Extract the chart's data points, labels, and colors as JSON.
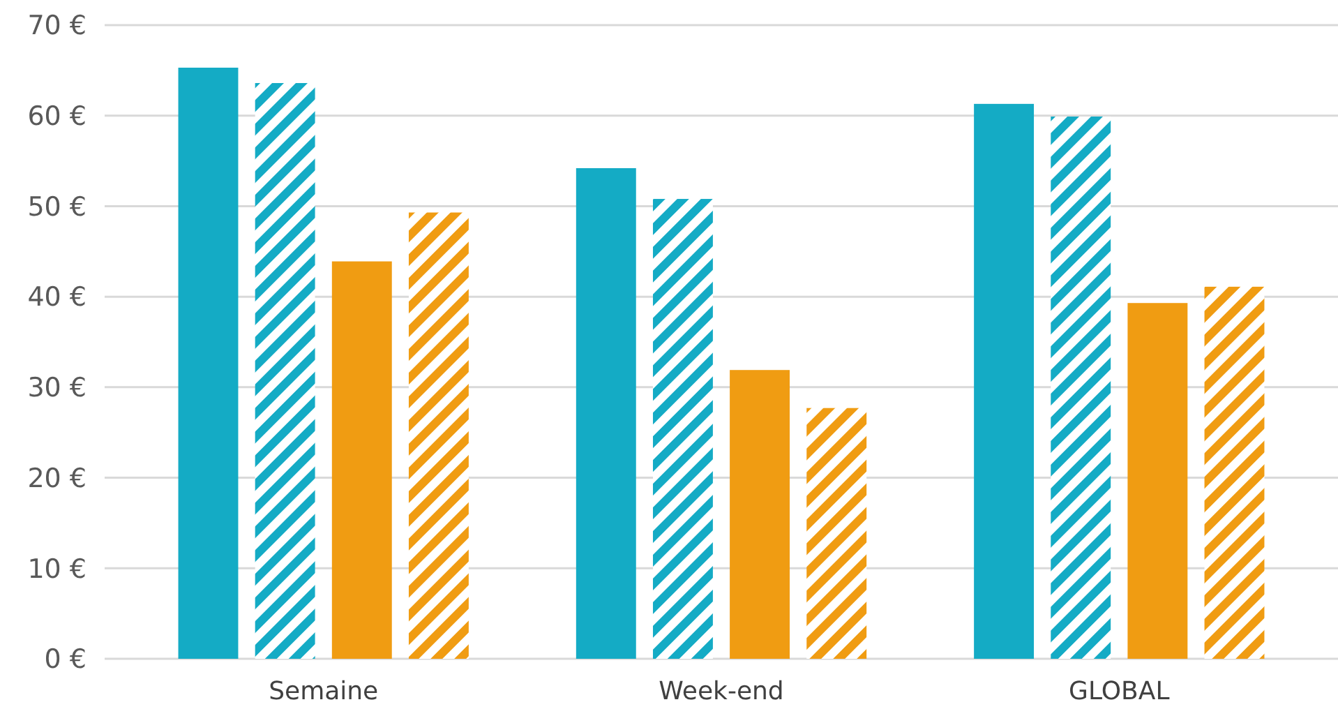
{
  "chart_data": {
    "type": "bar",
    "categories": [
      "Semaine",
      "Week-end",
      "GLOBAL"
    ],
    "series": [
      {
        "color": "#14abc5",
        "values": [
          65.3,
          54.2,
          61.3
        ]
      },
      {
        "color": "#14abc5",
        "values": [
          63.6,
          50.8,
          59.9
        ]
      },
      {
        "color": "#f09c12",
        "values": [
          43.9,
          31.9,
          39.3
        ]
      },
      {
        "color": "#f09c12",
        "values": [
          49.3,
          27.7,
          41.1
        ]
      }
    ],
    "ylim": [
      0,
      70
    ],
    "yticks": [
      {
        "value": 0,
        "label": "0 €"
      },
      {
        "value": 10,
        "label": "10 €"
      },
      {
        "value": 20,
        "label": "20 €"
      },
      {
        "value": 30,
        "label": "30 €"
      },
      {
        "value": 40,
        "label": "40 €"
      },
      {
        "value": 50,
        "label": "50 €"
      },
      {
        "value": 60,
        "label": "60 €"
      },
      {
        "value": 70,
        "label": "70 €"
      }
    ],
    "grid": "y"
  }
}
